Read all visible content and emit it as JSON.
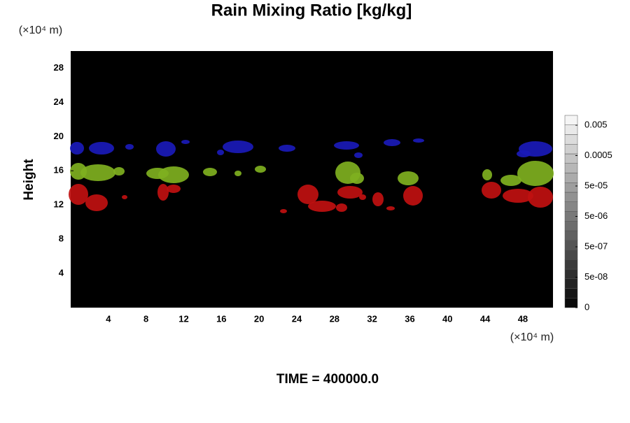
{
  "chart_data": {
    "type": "heatmap",
    "title": "Rain Mixing Ratio [kg/kg]",
    "ylabel": "Height",
    "xunit": "(×10⁴ m)",
    "yunit": "(×10⁴ m)",
    "footer": "TIME = 400000.0",
    "xlim": [
      0,
      51.2
    ],
    "ylim": [
      0,
      30
    ],
    "xticks": [
      4,
      8,
      12,
      16,
      20,
      24,
      28,
      32,
      36,
      40,
      44,
      48
    ],
    "yticks": [
      4,
      8,
      12,
      16,
      20,
      24,
      28
    ],
    "colorbar_ticks": [
      0,
      {
        "value": 5e-08,
        "label": "5e-08"
      },
      {
        "value": 5e-07,
        "label": "5e-07"
      },
      {
        "value": 5e-06,
        "label": "5e-06"
      },
      {
        "value": 5e-05,
        "label": "5e-05"
      },
      0.0005,
      0.005
    ]
  }
}
